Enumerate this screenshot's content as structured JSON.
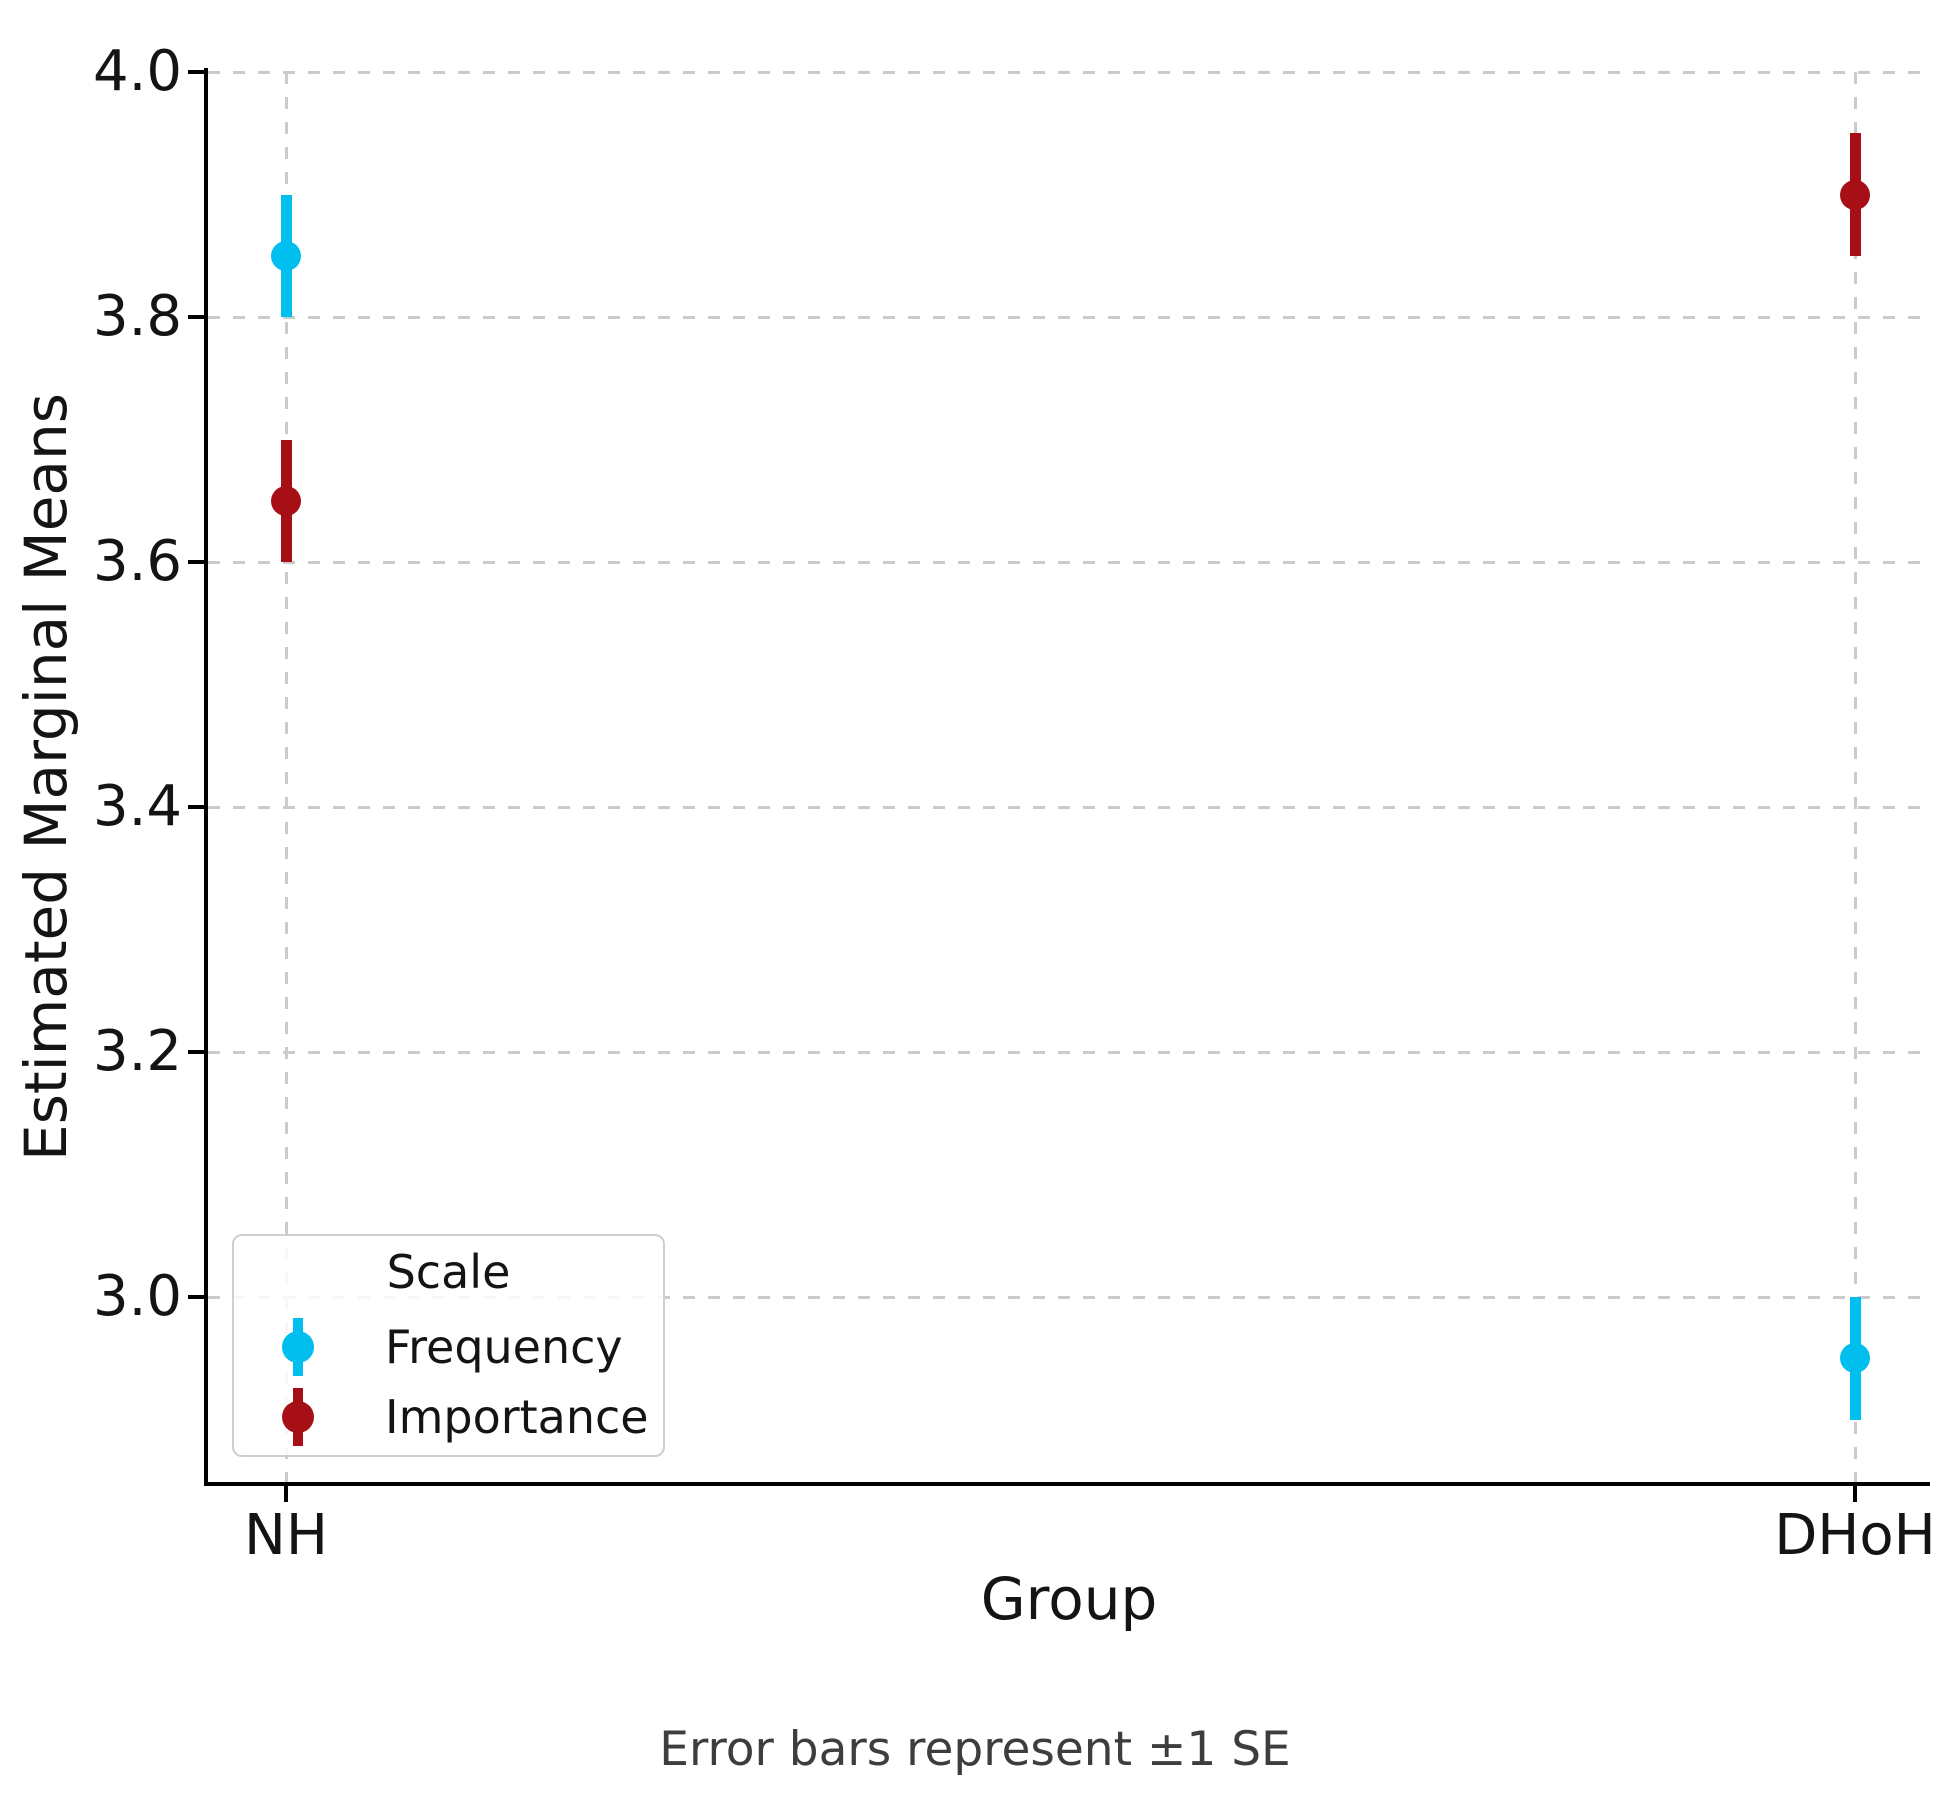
{
  "chart_data": {
    "type": "scatter",
    "title": "",
    "xlabel": "Group",
    "ylabel": "Estimated Marginal Means",
    "caption": "Error bars represent ±1 SE",
    "categories": [
      "NH",
      "DHoH"
    ],
    "series": [
      {
        "name": "Frequency",
        "color": "#00bfef",
        "values": [
          3.85,
          2.95
        ],
        "se": [
          0.05,
          0.05
        ]
      },
      {
        "name": "Importance",
        "color": "#a50f15",
        "values": [
          3.65,
          3.9
        ],
        "se": [
          0.05,
          0.05
        ]
      }
    ],
    "yticks": [
      3.0,
      3.2,
      3.4,
      3.6,
      3.8,
      4.0
    ],
    "ylim": [
      2.849,
      4.0
    ],
    "grid": {
      "style": "dashed",
      "axes": "both",
      "color": "#cbcbcb"
    },
    "legend": {
      "title": "Scale",
      "position": "lower-left"
    },
    "error_note": "±1 SE"
  },
  "colors": {
    "spine": "#000000",
    "text": "#141414",
    "caption_text": "#3d3d3d",
    "grid": "#cbcbcb",
    "legend_border": "#cfcfcf",
    "background": "#ffffff"
  }
}
